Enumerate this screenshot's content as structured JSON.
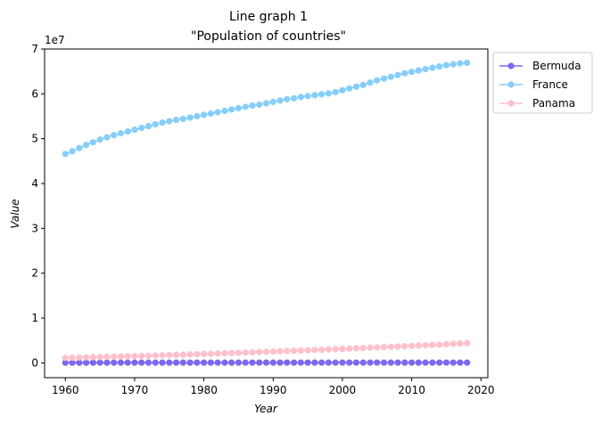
{
  "chart_data": {
    "type": "line",
    "title": "Line graph 1",
    "subtitle": "\"Population of countries\"",
    "xlabel": "Year",
    "ylabel": "Value",
    "offset_text": "1e7",
    "xlim": [
      1957,
      2021
    ],
    "ylim": [
      -3300000,
      70000000
    ],
    "x_ticks": [
      1960,
      1970,
      1980,
      1990,
      2000,
      2010,
      2020
    ],
    "y_ticks": [
      0,
      10000000,
      20000000,
      30000000,
      40000000,
      50000000,
      60000000,
      70000000
    ],
    "y_tick_labels": [
      "0",
      "1",
      "2",
      "3",
      "4",
      "5",
      "6",
      "7"
    ],
    "grid": false,
    "legend_position": "outside-top-right",
    "x": [
      1960,
      1961,
      1962,
      1963,
      1964,
      1965,
      1966,
      1967,
      1968,
      1969,
      1970,
      1971,
      1972,
      1973,
      1974,
      1975,
      1976,
      1977,
      1978,
      1979,
      1980,
      1981,
      1982,
      1983,
      1984,
      1985,
      1986,
      1987,
      1988,
      1989,
      1990,
      1991,
      1992,
      1993,
      1994,
      1995,
      1996,
      1997,
      1998,
      1999,
      2000,
      2001,
      2002,
      2003,
      2004,
      2005,
      2006,
      2007,
      2008,
      2009,
      2010,
      2011,
      2012,
      2013,
      2014,
      2015,
      2016,
      2017,
      2018
    ],
    "series": [
      {
        "name": "Bermuda",
        "color": "#7b68ee",
        "values": [
          44400,
          45500,
          46600,
          47700,
          48800,
          49900,
          51000,
          52000,
          53000,
          54000,
          55000,
          55300,
          55600,
          55900,
          56200,
          56500,
          56800,
          57100,
          57400,
          57700,
          58000,
          58400,
          58800,
          59200,
          59600,
          60000,
          60500,
          61000,
          61500,
          62000,
          62500,
          62700,
          62900,
          63100,
          63300,
          63500,
          63700,
          63900,
          64100,
          64300,
          64500,
          64600,
          64700,
          64800,
          64900,
          65000,
          65000,
          65000,
          65100,
          65100,
          65100,
          65000,
          64900,
          64800,
          64700,
          64600,
          64500,
          64400,
          64300
        ]
      },
      {
        "name": "France",
        "color": "#87cefa",
        "values": [
          46600000,
          47200000,
          47900000,
          48600000,
          49200000,
          49800000,
          50300000,
          50800000,
          51200000,
          51600000,
          52000000,
          52400000,
          52800000,
          53200000,
          53600000,
          53900000,
          54200000,
          54400000,
          54700000,
          55000000,
          55300000,
          55600000,
          55900000,
          56200000,
          56500000,
          56800000,
          57100000,
          57400000,
          57600000,
          57900000,
          58200000,
          58500000,
          58800000,
          59000000,
          59300000,
          59500000,
          59700000,
          59900000,
          60100000,
          60400000,
          60800000,
          61200000,
          61600000,
          62000000,
          62500000,
          63000000,
          63400000,
          63800000,
          64200000,
          64600000,
          64900000,
          65200000,
          65500000,
          65800000,
          66100000,
          66400000,
          66600000,
          66800000,
          66900000
        ]
      },
      {
        "name": "Panama",
        "color": "#ffc0cb",
        "values": [
          1130000,
          1165000,
          1200000,
          1236000,
          1272000,
          1310000,
          1348000,
          1387000,
          1427000,
          1468000,
          1510000,
          1553000,
          1597000,
          1642000,
          1688000,
          1735000,
          1783000,
          1832000,
          1882000,
          1933000,
          1985000,
          2038000,
          2091000,
          2145000,
          2199000,
          2253000,
          2307000,
          2362000,
          2418000,
          2475000,
          2533000,
          2591000,
          2649000,
          2707000,
          2766000,
          2825000,
          2884000,
          2943000,
          3003000,
          3064000,
          3126000,
          3189000,
          3252000,
          3316000,
          3381000,
          3447000,
          3514000,
          3582000,
          3651000,
          3721000,
          3792000,
          3864000,
          3937000,
          4011000,
          4086000,
          4162000,
          4239000,
          4316000,
          4394000
        ]
      }
    ]
  }
}
